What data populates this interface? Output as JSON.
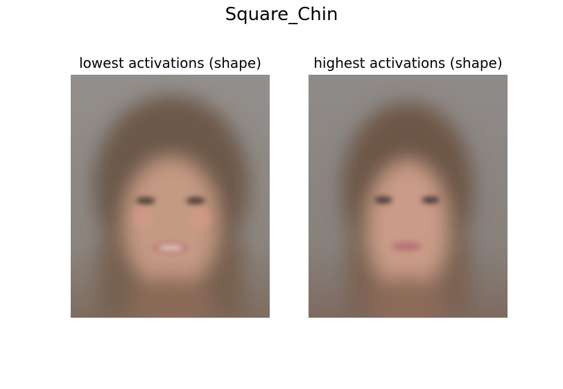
{
  "figure": {
    "title": "Square_Chin"
  },
  "panels": [
    {
      "title": "lowest activations (shape)"
    },
    {
      "title": "highest activations (shape)"
    }
  ],
  "colors": {
    "background": "#8f8c88",
    "hair": "#6a5646",
    "skin": "#c79a84",
    "lips_left": "#c08a80",
    "lips_right": "#c47f7e"
  }
}
